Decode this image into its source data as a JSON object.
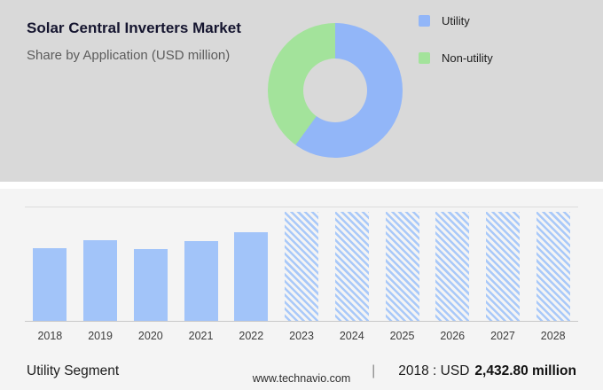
{
  "header": {
    "title": "Solar Central Inverters Market",
    "subtitle": "Share by Application (USD million)"
  },
  "legend": {
    "items": [
      {
        "label": "Utility",
        "color": "#92b6f8"
      },
      {
        "label": "Non-utility",
        "color": "#a3e39b"
      }
    ]
  },
  "chart_data": [
    {
      "type": "pie",
      "title": "Share by Application (USD million)",
      "labels": [
        "Utility",
        "Non-utility"
      ],
      "values": [
        60,
        40
      ],
      "colors": [
        "#92b6f8",
        "#a3e39b"
      ],
      "legend_position": "right",
      "donut": true
    },
    {
      "type": "bar",
      "categories": [
        "2018",
        "2019",
        "2020",
        "2021",
        "2022",
        "2023",
        "2024",
        "2025",
        "2026",
        "2027",
        "2028"
      ],
      "values": [
        2432.8,
        2700,
        2410,
        2670,
        2990,
        null,
        null,
        null,
        null,
        null,
        null
      ],
      "styles": [
        "solid",
        "solid",
        "solid",
        "solid",
        "solid",
        "hatched",
        "hatched",
        "hatched",
        "hatched",
        "hatched",
        "hatched"
      ],
      "heights_pct": [
        64,
        71,
        63,
        70,
        78,
        96,
        96,
        96,
        96,
        96,
        96
      ],
      "xlabel": "",
      "ylabel": "",
      "annotation": "2018 : USD 2,432.80 million"
    }
  ],
  "stats": {
    "segment_label": "Utility Segment",
    "divider": "|",
    "year_label": "2018 : USD",
    "value_bold": "2,432.80 million"
  },
  "footer": {
    "website": "www.technavio.com"
  }
}
